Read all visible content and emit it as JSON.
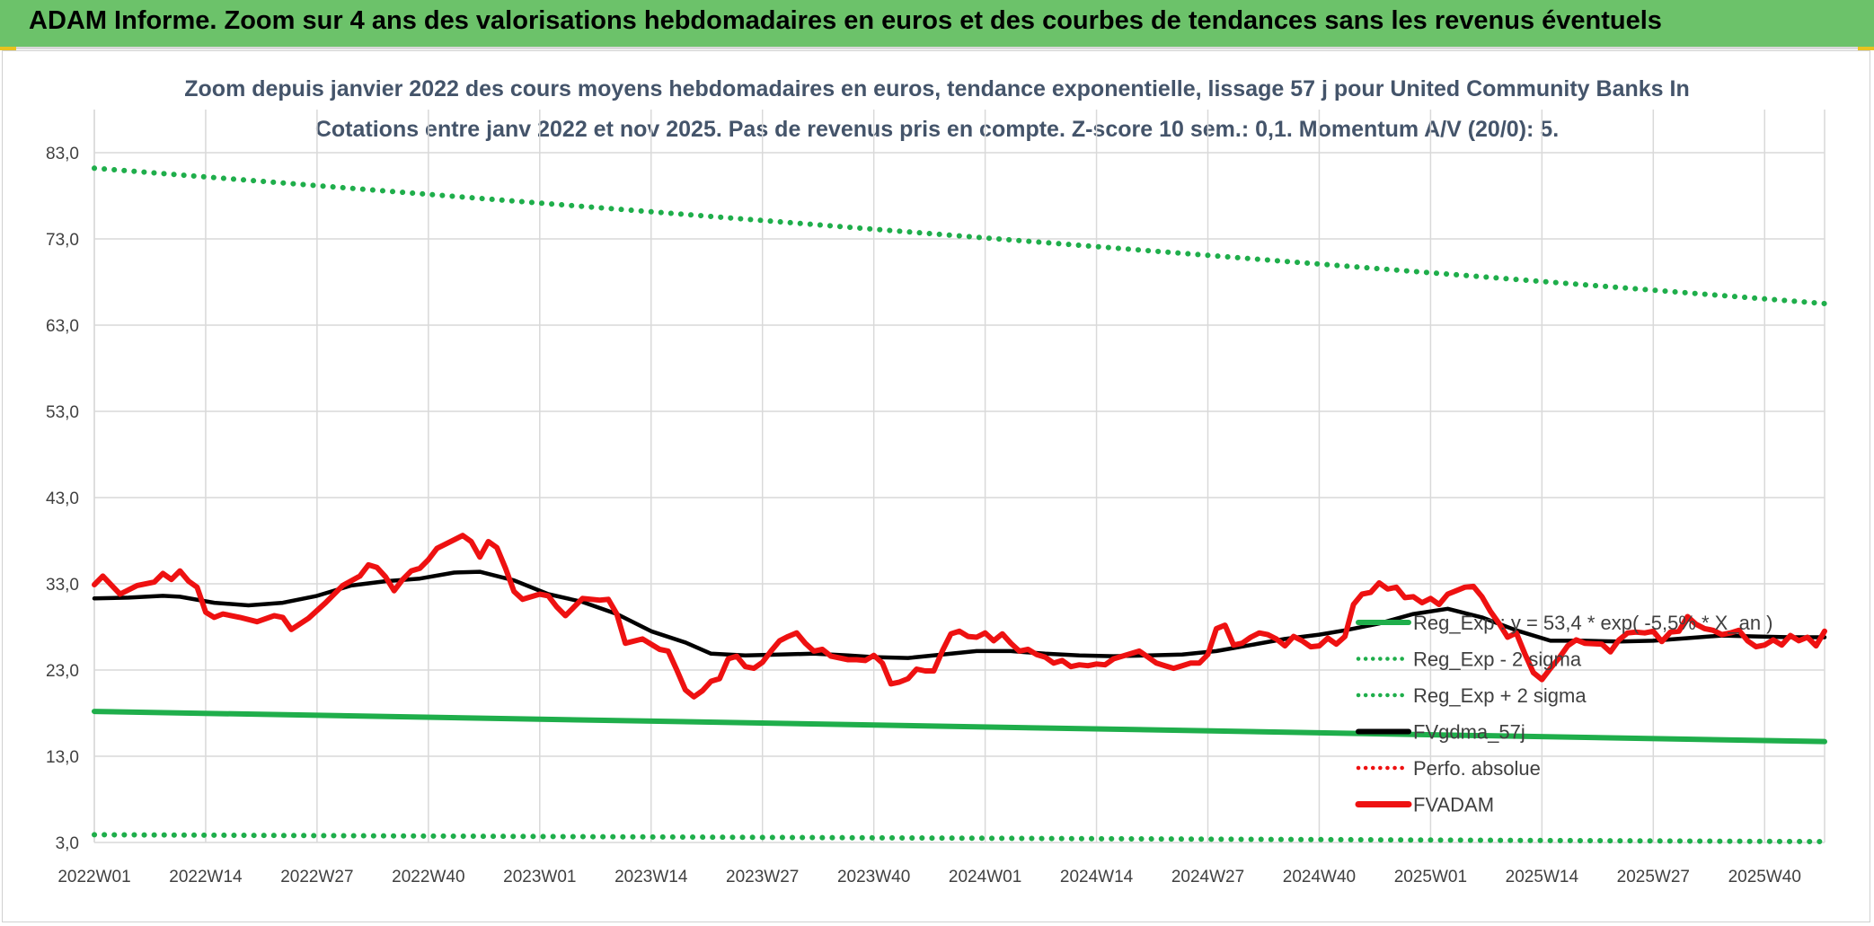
{
  "banner": {
    "title": "ADAM Informe. Zoom sur 4 ans des valorisations hebdomadaires en euros et des courbes de tendances sans les revenus éventuels"
  },
  "colors": {
    "banner_bg": "#6cc26a",
    "green": "#1fae4b",
    "black": "#000000",
    "red": "#ee1111",
    "grid": "#d9d9d9",
    "title": "#44546a"
  },
  "chart_data": {
    "type": "line",
    "title_line1": "Zoom depuis janvier 2022 des cours moyens hebdomadaires en euros, tendance exponentielle, lissage 57 j pour United Community Banks In",
    "title_line2": "Cotations entre janv 2022 et nov 2025. Pas de revenus pris en compte. Z-score 10 sem.: 0,1. Momentum A/V (20/0): 5.",
    "ylim": [
      3,
      88
    ],
    "yticks": [
      "83,0",
      "73,0",
      "63,0",
      "53,0",
      "43,0",
      "33,0",
      "23,0",
      "13,0",
      "3,0"
    ],
    "ytick_values": [
      83,
      73,
      63,
      53,
      43,
      33,
      23,
      13,
      3
    ],
    "x_count": 203,
    "xtick_labels": [
      "2022W01",
      "2022W14",
      "2022W27",
      "2022W40",
      "2023W01",
      "2023W14",
      "2023W27",
      "2023W40",
      "2024W01",
      "2024W14",
      "2024W27",
      "2024W40",
      "2025W01",
      "2025W14",
      "2025W27",
      "2025W40"
    ],
    "xtick_indices": [
      0,
      13,
      26,
      39,
      52,
      65,
      78,
      91,
      104,
      117,
      130,
      143,
      156,
      169,
      182,
      195
    ],
    "legend": [
      {
        "label": "Reg_Exp : y = 53,4 * exp( -5,5% *  X_an )",
        "style": "solid",
        "color": "#1fae4b"
      },
      {
        "label": "Reg_Exp - 2 sigma",
        "style": "dotted",
        "color": "#1fae4b"
      },
      {
        "label": "Reg_Exp + 2 sigma",
        "style": "dotted",
        "color": "#1fae4b"
      },
      {
        "label": "FVgdma_57j",
        "style": "solid",
        "color": "#000000"
      },
      {
        "label": "Perfo. absolue",
        "style": "dotted",
        "color": "#ee1111"
      },
      {
        "label": "FVADAM",
        "style": "solid-thick",
        "color": "#ee1111"
      }
    ],
    "series": [
      {
        "name": "Reg_Exp",
        "start": 18.2,
        "end": 14.7
      },
      {
        "name": "Reg_Exp - 2 sigma",
        "start": 3.9,
        "end": 3.1
      },
      {
        "name": "Reg_Exp + 2 sigma",
        "start": 81.2,
        "end": 65.5
      },
      {
        "name": "FVgdma_57j",
        "points": [
          [
            0,
            31.3
          ],
          [
            4,
            31.4
          ],
          [
            8,
            31.6
          ],
          [
            10,
            31.5
          ],
          [
            14,
            30.8
          ],
          [
            18,
            30.5
          ],
          [
            22,
            30.8
          ],
          [
            26,
            31.6
          ],
          [
            30,
            32.8
          ],
          [
            34,
            33.3
          ],
          [
            38,
            33.6
          ],
          [
            42,
            34.3
          ],
          [
            45,
            34.4
          ],
          [
            49,
            33.4
          ],
          [
            53,
            31.8
          ],
          [
            57,
            30.9
          ],
          [
            61,
            29.5
          ],
          [
            65,
            27.5
          ],
          [
            69,
            26.2
          ],
          [
            72,
            24.9
          ],
          [
            76,
            24.7
          ],
          [
            80,
            24.8
          ],
          [
            84,
            24.9
          ],
          [
            88,
            24.7
          ],
          [
            91,
            24.5
          ],
          [
            95,
            24.4
          ],
          [
            99,
            24.8
          ],
          [
            103,
            25.2
          ],
          [
            107,
            25.2
          ],
          [
            111,
            24.9
          ],
          [
            115,
            24.7
          ],
          [
            119,
            24.6
          ],
          [
            123,
            24.7
          ],
          [
            127,
            24.8
          ],
          [
            131,
            25.2
          ],
          [
            135,
            25.9
          ],
          [
            139,
            26.6
          ],
          [
            143,
            27.1
          ],
          [
            146,
            27.6
          ],
          [
            150,
            28.4
          ],
          [
            154,
            29.5
          ],
          [
            158,
            30.1
          ],
          [
            162,
            29.1
          ],
          [
            166,
            27.6
          ],
          [
            170,
            26.4
          ],
          [
            174,
            26.4
          ],
          [
            178,
            26.3
          ],
          [
            182,
            26.4
          ],
          [
            186,
            26.7
          ],
          [
            190,
            27.0
          ],
          [
            194,
            26.9
          ],
          [
            198,
            26.8
          ],
          [
            202,
            26.8
          ]
        ]
      },
      {
        "name": "FVADAM",
        "points": [
          [
            0,
            32.9
          ],
          [
            1,
            33.9
          ],
          [
            3,
            31.8
          ],
          [
            5,
            32.8
          ],
          [
            7,
            33.2
          ],
          [
            8,
            34.2
          ],
          [
            9,
            33.5
          ],
          [
            10,
            34.5
          ],
          [
            11,
            33.3
          ],
          [
            12,
            32.6
          ],
          [
            13,
            29.7
          ],
          [
            14,
            29.1
          ],
          [
            15,
            29.5
          ],
          [
            17,
            29.1
          ],
          [
            19,
            28.6
          ],
          [
            21,
            29.3
          ],
          [
            22,
            29.1
          ],
          [
            23,
            27.7
          ],
          [
            25,
            29.0
          ],
          [
            27,
            30.8
          ],
          [
            29,
            32.8
          ],
          [
            31,
            33.9
          ],
          [
            32,
            35.2
          ],
          [
            33,
            34.9
          ],
          [
            34,
            33.8
          ],
          [
            35,
            32.2
          ],
          [
            36,
            33.5
          ],
          [
            37,
            34.5
          ],
          [
            38,
            34.8
          ],
          [
            39,
            35.8
          ],
          [
            40,
            37.1
          ],
          [
            41,
            37.6
          ],
          [
            43,
            38.6
          ],
          [
            44,
            37.9
          ],
          [
            45,
            36.1
          ],
          [
            46,
            37.9
          ],
          [
            47,
            37.2
          ],
          [
            48,
            34.8
          ],
          [
            49,
            32.1
          ],
          [
            50,
            31.2
          ],
          [
            51,
            31.5
          ],
          [
            52,
            31.8
          ],
          [
            53,
            31.6
          ],
          [
            54,
            30.3
          ],
          [
            55,
            29.3
          ],
          [
            56,
            30.3
          ],
          [
            57,
            31.3
          ],
          [
            59,
            31.1
          ],
          [
            60,
            31.2
          ],
          [
            61,
            29.5
          ],
          [
            62,
            26.1
          ],
          [
            64,
            26.6
          ],
          [
            66,
            25.4
          ],
          [
            67,
            25.2
          ],
          [
            68,
            23.0
          ],
          [
            69,
            20.7
          ],
          [
            70,
            19.9
          ],
          [
            71,
            20.6
          ],
          [
            72,
            21.7
          ],
          [
            73,
            22.0
          ],
          [
            74,
            24.3
          ],
          [
            75,
            24.6
          ],
          [
            76,
            23.4
          ],
          [
            77,
            23.2
          ],
          [
            78,
            23.9
          ],
          [
            79,
            25.2
          ],
          [
            80,
            26.4
          ],
          [
            81,
            26.9
          ],
          [
            82,
            27.3
          ],
          [
            83,
            26.1
          ],
          [
            84,
            25.2
          ],
          [
            85,
            25.4
          ],
          [
            86,
            24.6
          ],
          [
            88,
            24.2
          ],
          [
            89,
            24.2
          ],
          [
            90,
            24.1
          ],
          [
            91,
            24.7
          ],
          [
            92,
            23.8
          ],
          [
            93,
            21.4
          ],
          [
            94,
            21.6
          ],
          [
            95,
            22.0
          ],
          [
            96,
            23.1
          ],
          [
            97,
            22.9
          ],
          [
            98,
            22.9
          ],
          [
            99,
            25.2
          ],
          [
            100,
            27.2
          ],
          [
            101,
            27.5
          ],
          [
            102,
            26.9
          ],
          [
            103,
            26.8
          ],
          [
            104,
            27.3
          ],
          [
            105,
            26.4
          ],
          [
            106,
            27.2
          ],
          [
            107,
            26.1
          ],
          [
            108,
            25.2
          ],
          [
            109,
            25.4
          ],
          [
            110,
            24.8
          ],
          [
            111,
            24.5
          ],
          [
            112,
            23.8
          ],
          [
            113,
            24.1
          ],
          [
            114,
            23.4
          ],
          [
            115,
            23.6
          ],
          [
            116,
            23.5
          ],
          [
            117,
            23.7
          ],
          [
            118,
            23.6
          ],
          [
            119,
            24.3
          ],
          [
            121,
            24.9
          ],
          [
            122,
            25.2
          ],
          [
            123,
            24.5
          ],
          [
            124,
            23.8
          ],
          [
            125,
            23.5
          ],
          [
            126,
            23.2
          ],
          [
            127,
            23.5
          ],
          [
            128,
            23.8
          ],
          [
            129,
            23.8
          ],
          [
            130,
            24.8
          ],
          [
            131,
            27.8
          ],
          [
            132,
            28.2
          ],
          [
            133,
            25.9
          ],
          [
            134,
            26.1
          ],
          [
            135,
            26.8
          ],
          [
            136,
            27.3
          ],
          [
            137,
            27.1
          ],
          [
            138,
            26.6
          ],
          [
            139,
            25.8
          ],
          [
            140,
            26.9
          ],
          [
            141,
            26.4
          ],
          [
            142,
            25.7
          ],
          [
            143,
            25.8
          ],
          [
            144,
            26.7
          ],
          [
            145,
            26.0
          ],
          [
            146,
            26.9
          ],
          [
            147,
            30.6
          ],
          [
            148,
            31.8
          ],
          [
            149,
            32.0
          ],
          [
            150,
            33.1
          ],
          [
            151,
            32.4
          ],
          [
            152,
            32.6
          ],
          [
            153,
            31.4
          ],
          [
            154,
            31.5
          ],
          [
            155,
            30.8
          ],
          [
            156,
            31.3
          ],
          [
            157,
            30.6
          ],
          [
            158,
            31.8
          ],
          [
            159,
            32.2
          ],
          [
            160,
            32.6
          ],
          [
            161,
            32.7
          ],
          [
            162,
            31.5
          ],
          [
            163,
            29.8
          ],
          [
            164,
            28.4
          ],
          [
            165,
            26.8
          ],
          [
            166,
            27.3
          ],
          [
            167,
            24.9
          ],
          [
            168,
            22.7
          ],
          [
            169,
            21.9
          ],
          [
            170,
            23.2
          ],
          [
            171,
            24.4
          ],
          [
            172,
            25.8
          ],
          [
            173,
            26.5
          ],
          [
            174,
            26.1
          ],
          [
            176,
            26.0
          ],
          [
            177,
            25.1
          ],
          [
            178,
            26.5
          ],
          [
            179,
            27.3
          ],
          [
            180,
            27.4
          ],
          [
            181,
            27.3
          ],
          [
            182,
            27.5
          ],
          [
            183,
            26.3
          ],
          [
            184,
            27.4
          ],
          [
            185,
            27.5
          ],
          [
            186,
            29.2
          ],
          [
            187,
            28.3
          ],
          [
            188,
            27.8
          ],
          [
            189,
            27.6
          ],
          [
            190,
            27.1
          ],
          [
            191,
            27.3
          ],
          [
            192,
            27.6
          ],
          [
            193,
            26.4
          ],
          [
            194,
            25.7
          ],
          [
            195,
            25.9
          ],
          [
            196,
            26.5
          ],
          [
            197,
            25.9
          ],
          [
            198,
            27.0
          ],
          [
            199,
            26.4
          ],
          [
            200,
            26.8
          ],
          [
            201,
            25.8
          ],
          [
            202,
            27.5
          ]
        ]
      }
    ]
  }
}
